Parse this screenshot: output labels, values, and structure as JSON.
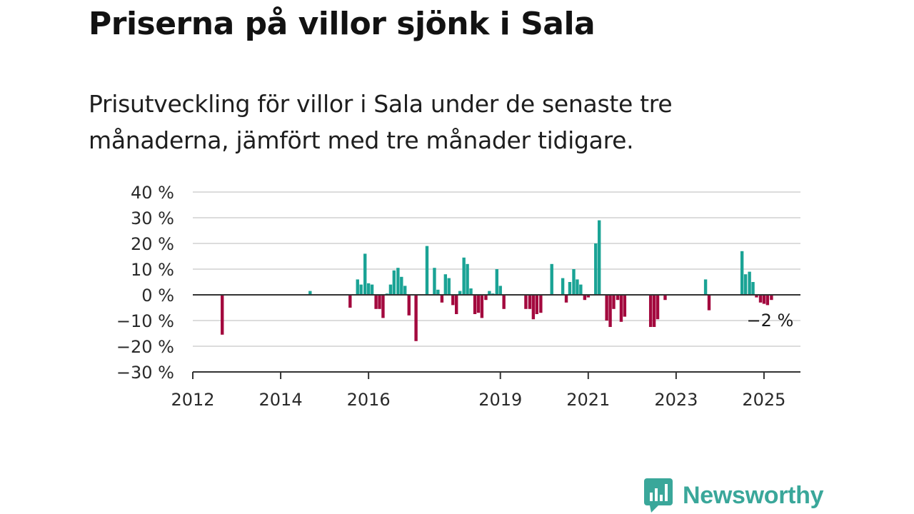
{
  "header": {
    "title": "Priserna på villor sjönk i Sala",
    "subtitle": "Prisutveckling för villor i Sala under de senaste tre månaderna, jämfört med tre månader tidigare."
  },
  "logo": {
    "text": "Newsworthy",
    "icon": "newsworthy-chart-icon"
  },
  "colors": {
    "positive": "#1aa395",
    "negative": "#a3093e",
    "grid": "#dcdcdc",
    "axis": "#333333"
  },
  "chart_data": {
    "type": "bar",
    "x_unit": "year (decimal, monthly)",
    "y_unit": "%",
    "ylim": [
      -30,
      40
    ],
    "y_ticks": [
      {
        "value": 40,
        "label": "40 %"
      },
      {
        "value": 30,
        "label": "30 %"
      },
      {
        "value": 20,
        "label": "20 %"
      },
      {
        "value": 10,
        "label": "10 %"
      },
      {
        "value": 0,
        "label": "0 %"
      },
      {
        "value": -10,
        "label": "−10 %"
      },
      {
        "value": -20,
        "label": "−20 %"
      },
      {
        "value": -30,
        "label": "−30 %"
      }
    ],
    "xlim": [
      2012,
      2025.83
    ],
    "x_ticks": [
      {
        "value": 2012,
        "label": "2012"
      },
      {
        "value": 2014,
        "label": "2014"
      },
      {
        "value": 2016,
        "label": "2016"
      },
      {
        "value": 2019,
        "label": "2019"
      },
      {
        "value": 2021,
        "label": "2021"
      },
      {
        "value": 2023,
        "label": "2023"
      },
      {
        "value": 2025,
        "label": "2025"
      }
    ],
    "grid": true,
    "annotation": {
      "label": "−2 %",
      "x": 2025.17,
      "y": -2
    },
    "points": [
      {
        "x": 2012.67,
        "y": -15.5
      },
      {
        "x": 2014.67,
        "y": 1.5
      },
      {
        "x": 2015.58,
        "y": -5
      },
      {
        "x": 2015.75,
        "y": 6
      },
      {
        "x": 2015.83,
        "y": 4
      },
      {
        "x": 2015.92,
        "y": 16
      },
      {
        "x": 2016.0,
        "y": 4.5
      },
      {
        "x": 2016.08,
        "y": 4
      },
      {
        "x": 2016.17,
        "y": -5.5
      },
      {
        "x": 2016.25,
        "y": -5.5
      },
      {
        "x": 2016.33,
        "y": -9
      },
      {
        "x": 2016.42,
        "y": 0.5
      },
      {
        "x": 2016.5,
        "y": 4
      },
      {
        "x": 2016.58,
        "y": 9.5
      },
      {
        "x": 2016.67,
        "y": 10.5
      },
      {
        "x": 2016.75,
        "y": 7
      },
      {
        "x": 2016.83,
        "y": 3.5
      },
      {
        "x": 2016.92,
        "y": -8
      },
      {
        "x": 2017.08,
        "y": -18
      },
      {
        "x": 2017.33,
        "y": 19
      },
      {
        "x": 2017.5,
        "y": 10.5
      },
      {
        "x": 2017.58,
        "y": 2
      },
      {
        "x": 2017.67,
        "y": -3
      },
      {
        "x": 2017.75,
        "y": 8
      },
      {
        "x": 2017.83,
        "y": 6.5
      },
      {
        "x": 2017.92,
        "y": -4
      },
      {
        "x": 2018.0,
        "y": -7.5
      },
      {
        "x": 2018.08,
        "y": 1.5
      },
      {
        "x": 2018.17,
        "y": 14.5
      },
      {
        "x": 2018.25,
        "y": 12
      },
      {
        "x": 2018.33,
        "y": 2.5
      },
      {
        "x": 2018.42,
        "y": -7.5
      },
      {
        "x": 2018.5,
        "y": -7
      },
      {
        "x": 2018.58,
        "y": -9
      },
      {
        "x": 2018.67,
        "y": -2
      },
      {
        "x": 2018.75,
        "y": 1.5
      },
      {
        "x": 2018.83,
        "y": 0.5
      },
      {
        "x": 2018.92,
        "y": 10
      },
      {
        "x": 2019.0,
        "y": 3.5
      },
      {
        "x": 2019.08,
        "y": -5.5
      },
      {
        "x": 2019.58,
        "y": -5.5
      },
      {
        "x": 2019.67,
        "y": -5.5
      },
      {
        "x": 2019.75,
        "y": -9.5
      },
      {
        "x": 2019.83,
        "y": -7.5
      },
      {
        "x": 2019.92,
        "y": -7
      },
      {
        "x": 2020.17,
        "y": 12
      },
      {
        "x": 2020.42,
        "y": 6.5
      },
      {
        "x": 2020.5,
        "y": -3
      },
      {
        "x": 2020.58,
        "y": 5
      },
      {
        "x": 2020.67,
        "y": 10
      },
      {
        "x": 2020.75,
        "y": 6
      },
      {
        "x": 2020.83,
        "y": 4
      },
      {
        "x": 2020.92,
        "y": -2
      },
      {
        "x": 2021.0,
        "y": -1
      },
      {
        "x": 2021.17,
        "y": 20
      },
      {
        "x": 2021.25,
        "y": 29
      },
      {
        "x": 2021.42,
        "y": -10
      },
      {
        "x": 2021.5,
        "y": -12.5
      },
      {
        "x": 2021.58,
        "y": -5.5
      },
      {
        "x": 2021.67,
        "y": -2
      },
      {
        "x": 2021.75,
        "y": -10.5
      },
      {
        "x": 2021.83,
        "y": -8.5
      },
      {
        "x": 2022.42,
        "y": -12.5
      },
      {
        "x": 2022.5,
        "y": -12.5
      },
      {
        "x": 2022.58,
        "y": -9.5
      },
      {
        "x": 2022.75,
        "y": -2
      },
      {
        "x": 2023.67,
        "y": 6
      },
      {
        "x": 2023.75,
        "y": -6
      },
      {
        "x": 2024.5,
        "y": 17
      },
      {
        "x": 2024.58,
        "y": 8
      },
      {
        "x": 2024.67,
        "y": 9
      },
      {
        "x": 2024.75,
        "y": 5
      },
      {
        "x": 2024.83,
        "y": -1
      },
      {
        "x": 2024.92,
        "y": -3
      },
      {
        "x": 2025.0,
        "y": -3.5
      },
      {
        "x": 2025.08,
        "y": -4
      },
      {
        "x": 2025.17,
        "y": -2
      }
    ]
  }
}
